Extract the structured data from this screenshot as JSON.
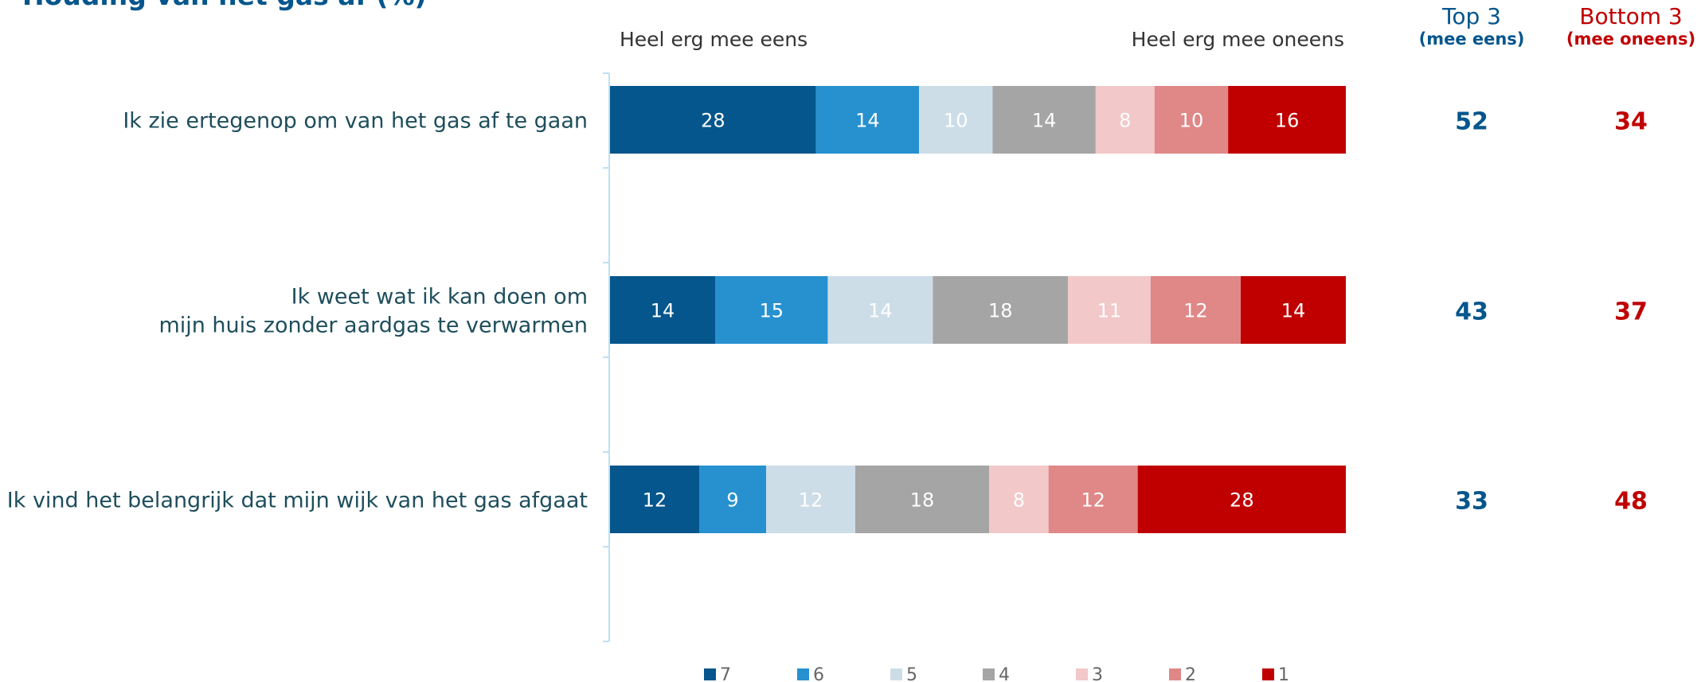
{
  "chart_data": {
    "type": "bar",
    "stacked": true,
    "orientation": "horizontal",
    "title": "Houding van het gas af (%)",
    "scale_left_label": "Heel erg mee eens",
    "scale_right_label": "Heel erg mee oneens",
    "categories": [
      [
        "Ik zie ertegenop om van het gas af te gaan"
      ],
      [
        "Ik weet wat ik kan doen om",
        "mijn huis zonder aardgas te verwarmen"
      ],
      [
        "Ik vind het belangrijk dat mijn wijk van het gas afgaat"
      ]
    ],
    "series": [
      {
        "name": "7",
        "color": "#04568c",
        "values": [
          28,
          14,
          12
        ]
      },
      {
        "name": "6",
        "color": "#2791d0",
        "values": [
          14,
          15,
          9
        ]
      },
      {
        "name": "5",
        "color": "#cddde8",
        "values": [
          10,
          14,
          12
        ]
      },
      {
        "name": "4",
        "color": "#a5a5a5",
        "values": [
          14,
          18,
          18
        ]
      },
      {
        "name": "3",
        "color": "#f2c8c8",
        "values": [
          8,
          11,
          8
        ]
      },
      {
        "name": "2",
        "color": "#e08787",
        "values": [
          10,
          12,
          12
        ]
      },
      {
        "name": "1",
        "color": "#c00000",
        "values": [
          16,
          14,
          28
        ]
      }
    ],
    "summary": {
      "top": {
        "title": "Top 3",
        "subtitle": "(mee eens)",
        "color": "#04568c",
        "values": [
          52,
          43,
          33
        ]
      },
      "bottom": {
        "title": "Bottom 3",
        "subtitle": "(mee oneens)",
        "color": "#c00000",
        "values": [
          34,
          37,
          48
        ]
      }
    },
    "legend_position": "bottom",
    "grid": false
  }
}
